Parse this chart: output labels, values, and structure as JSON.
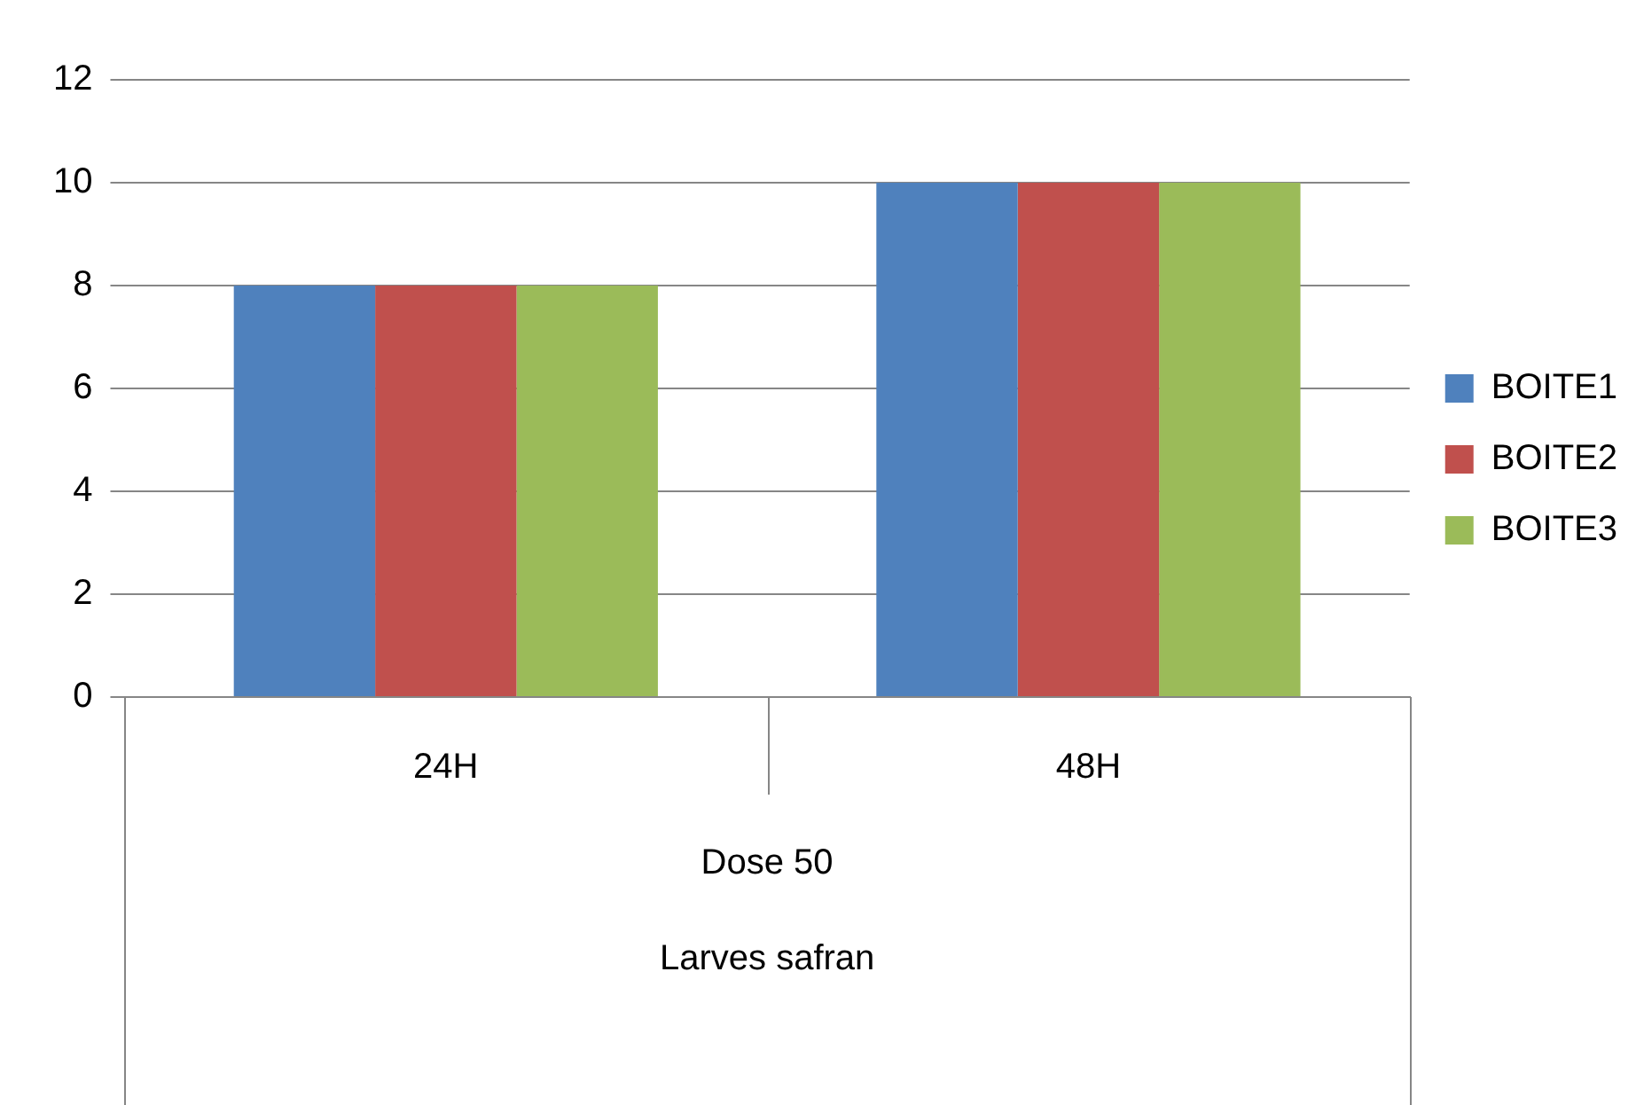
{
  "chart_data": {
    "type": "bar",
    "categories": [
      "24H",
      "48H"
    ],
    "series": [
      {
        "name": "BOITE1",
        "color": "#4f81bd",
        "values": [
          8,
          10
        ]
      },
      {
        "name": "BOITE2",
        "color": "#c0504d",
        "values": [
          8,
          10
        ]
      },
      {
        "name": "BOITE3",
        "color": "#9bbb59",
        "values": [
          8,
          10
        ]
      }
    ],
    "ylim": [
      0,
      12
    ],
    "yticks": [
      0,
      2,
      4,
      6,
      8,
      10,
      12
    ],
    "grid": "y",
    "legend": "right",
    "annotations": [
      "Dose 50",
      "Larves safran"
    ]
  }
}
